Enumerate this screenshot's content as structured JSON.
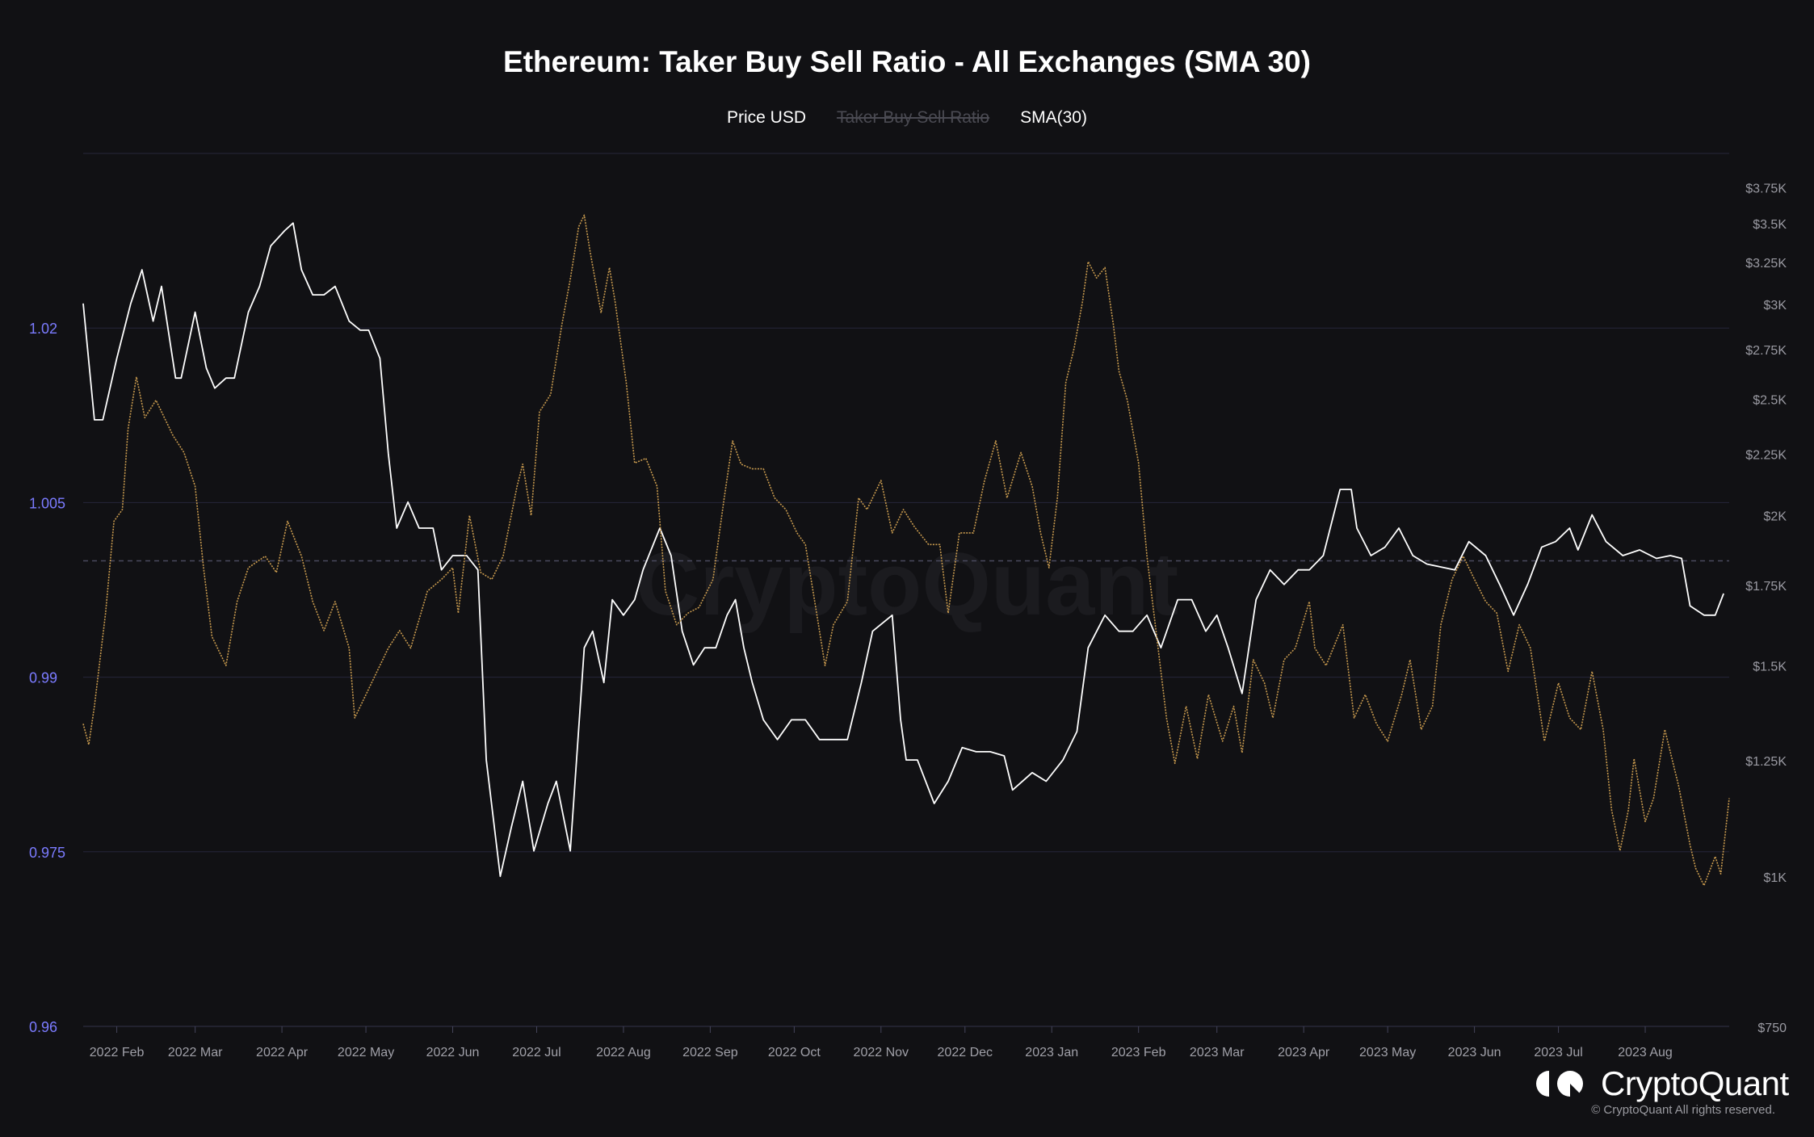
{
  "chart_data": {
    "type": "line",
    "title": "Ethereum: Taker Buy Sell Ratio - All Exchanges (SMA 30)",
    "legend": [
      {
        "label": "Price USD",
        "color": "#ffffff",
        "visible": true
      },
      {
        "label": "Taker Buy Sell Ratio",
        "visible": false
      },
      {
        "label": "SMA(30)",
        "color": "#c89a4e",
        "visible": true
      }
    ],
    "legend_placement": "top-center",
    "xlim": [
      "2022-01-20",
      "2023-08-31"
    ],
    "x_ticks": [
      "2022 Feb",
      "2022 Mar",
      "2022 Apr",
      "2022 May",
      "2022 Jun",
      "2022 Jul",
      "2022 Aug",
      "2022 Sep",
      "2022 Oct",
      "2022 Nov",
      "2022 Dec",
      "2023 Jan",
      "2023 Feb",
      "2023 Mar",
      "2023 Apr",
      "2023 May",
      "2023 Jun",
      "2023 Jul",
      "2023 Aug"
    ],
    "x_tick_dates": [
      "2022-02-01",
      "2022-03-01",
      "2022-04-01",
      "2022-05-01",
      "2022-06-01",
      "2022-07-01",
      "2022-08-01",
      "2022-09-01",
      "2022-10-01",
      "2022-11-01",
      "2022-12-01",
      "2023-01-01",
      "2023-02-01",
      "2023-03-01",
      "2023-04-01",
      "2023-05-01",
      "2023-06-01",
      "2023-07-01",
      "2023-08-01"
    ],
    "left_axis": {
      "range": [
        0.96,
        1.035
      ],
      "ticks": [
        0.96,
        0.975,
        0.99,
        1.005,
        1.02
      ],
      "tick_labels": [
        "0.96",
        "0.975",
        "0.99",
        "1.005",
        "1.02"
      ],
      "reference_line": 1.0,
      "color": "#7b7bff"
    },
    "right_axis": {
      "scale": "log",
      "range": [
        750,
        4000
      ],
      "ticks": [
        750,
        1000,
        1250,
        1500,
        1750,
        2000,
        2250,
        2500,
        2750,
        3000,
        3250,
        3500,
        3750
      ],
      "tick_labels": [
        "$750",
        "$1K",
        "$1.25K",
        "$1.5K",
        "$1.75K",
        "$2K",
        "$2.25K",
        "$2.5K",
        "$2.75K",
        "$3K",
        "$3.25K",
        "$3.5K",
        "$3.75K"
      ]
    },
    "grid": true,
    "series": [
      {
        "name": "Price USD",
        "axis": "right",
        "color": "#ffffff",
        "x": [
          "2022-01-20",
          "2022-01-24",
          "2022-01-27",
          "2022-02-01",
          "2022-02-06",
          "2022-02-10",
          "2022-02-14",
          "2022-02-17",
          "2022-02-22",
          "2022-02-24",
          "2022-03-01",
          "2022-03-05",
          "2022-03-08",
          "2022-03-12",
          "2022-03-15",
          "2022-03-20",
          "2022-03-24",
          "2022-03-28",
          "2022-04-02",
          "2022-04-05",
          "2022-04-08",
          "2022-04-12",
          "2022-04-16",
          "2022-04-20",
          "2022-04-25",
          "2022-04-29",
          "2022-05-02",
          "2022-05-06",
          "2022-05-09",
          "2022-05-12",
          "2022-05-16",
          "2022-05-20",
          "2022-05-25",
          "2022-05-28",
          "2022-06-01",
          "2022-06-06",
          "2022-06-10",
          "2022-06-13",
          "2022-06-18",
          "2022-06-22",
          "2022-06-26",
          "2022-06-30",
          "2022-07-05",
          "2022-07-08",
          "2022-07-13",
          "2022-07-18",
          "2022-07-21",
          "2022-07-25",
          "2022-07-28",
          "2022-08-01",
          "2022-08-05",
          "2022-08-08",
          "2022-08-14",
          "2022-08-18",
          "2022-08-22",
          "2022-08-26",
          "2022-08-30",
          "2022-09-03",
          "2022-09-07",
          "2022-09-10",
          "2022-09-13",
          "2022-09-16",
          "2022-09-20",
          "2022-09-25",
          "2022-09-30",
          "2022-10-05",
          "2022-10-10",
          "2022-10-15",
          "2022-10-20",
          "2022-10-25",
          "2022-10-29",
          "2022-11-05",
          "2022-11-08",
          "2022-11-10",
          "2022-11-14",
          "2022-11-20",
          "2022-11-25",
          "2022-11-30",
          "2022-12-05",
          "2022-12-10",
          "2022-12-15",
          "2022-12-18",
          "2022-12-25",
          "2022-12-30",
          "2023-01-05",
          "2023-01-10",
          "2023-01-14",
          "2023-01-20",
          "2023-01-25",
          "2023-01-30",
          "2023-02-04",
          "2023-02-09",
          "2023-02-15",
          "2023-02-20",
          "2023-02-25",
          "2023-03-01",
          "2023-03-05",
          "2023-03-10",
          "2023-03-15",
          "2023-03-20",
          "2023-03-25",
          "2023-03-30",
          "2023-04-03",
          "2023-04-08",
          "2023-04-14",
          "2023-04-18",
          "2023-04-20",
          "2023-04-25",
          "2023-04-30",
          "2023-05-05",
          "2023-05-10",
          "2023-05-15",
          "2023-05-20",
          "2023-05-25",
          "2023-05-30",
          "2023-06-05",
          "2023-06-10",
          "2023-06-15",
          "2023-06-20",
          "2023-06-25",
          "2023-06-30",
          "2023-07-05",
          "2023-07-08",
          "2023-07-13",
          "2023-07-18",
          "2023-07-24",
          "2023-07-30",
          "2023-08-05",
          "2023-08-10",
          "2023-08-14",
          "2023-08-17",
          "2023-08-22",
          "2023-08-26",
          "2023-08-29"
        ],
        "values": [
          3000,
          2400,
          2400,
          2700,
          3000,
          3200,
          2900,
          3100,
          2600,
          2600,
          2950,
          2650,
          2550,
          2600,
          2600,
          2950,
          3100,
          3350,
          3450,
          3500,
          3200,
          3050,
          3050,
          3100,
          2900,
          2850,
          2850,
          2700,
          2250,
          1950,
          2050,
          1950,
          1950,
          1800,
          1850,
          1850,
          1800,
          1250,
          1000,
          1100,
          1200,
          1050,
          1150,
          1200,
          1050,
          1550,
          1600,
          1450,
          1700,
          1650,
          1700,
          1800,
          1950,
          1850,
          1600,
          1500,
          1550,
          1550,
          1650,
          1700,
          1550,
          1450,
          1350,
          1300,
          1350,
          1350,
          1300,
          1300,
          1300,
          1450,
          1600,
          1650,
          1350,
          1250,
          1250,
          1150,
          1200,
          1280,
          1270,
          1270,
          1260,
          1180,
          1220,
          1200,
          1250,
          1320,
          1550,
          1650,
          1600,
          1600,
          1650,
          1550,
          1700,
          1700,
          1600,
          1650,
          1550,
          1420,
          1700,
          1800,
          1750,
          1800,
          1800,
          1850,
          2100,
          2100,
          1950,
          1850,
          1880,
          1950,
          1850,
          1820,
          1810,
          1800,
          1900,
          1850,
          1750,
          1650,
          1750,
          1880,
          1900,
          1950,
          1870,
          2000,
          1900,
          1850,
          1870,
          1840,
          1850,
          1840,
          1680,
          1650,
          1650,
          1720
        ]
      },
      {
        "name": "SMA(30)",
        "axis": "left",
        "color": "#c89a4e",
        "x": [
          "2022-01-20",
          "2022-01-22",
          "2022-01-24",
          "2022-01-28",
          "2022-01-31",
          "2022-02-03",
          "2022-02-05",
          "2022-02-08",
          "2022-02-11",
          "2022-02-15",
          "2022-02-21",
          "2022-02-25",
          "2022-03-01",
          "2022-03-04",
          "2022-03-07",
          "2022-03-12",
          "2022-03-16",
          "2022-03-20",
          "2022-03-26",
          "2022-03-30",
          "2022-04-03",
          "2022-04-08",
          "2022-04-12",
          "2022-04-16",
          "2022-04-20",
          "2022-04-25",
          "2022-04-27",
          "2022-05-01",
          "2022-05-05",
          "2022-05-09",
          "2022-05-13",
          "2022-05-17",
          "2022-05-23",
          "2022-05-28",
          "2022-06-01",
          "2022-06-03",
          "2022-06-07",
          "2022-06-11",
          "2022-06-15",
          "2022-06-19",
          "2022-06-24",
          "2022-06-26",
          "2022-06-29",
          "2022-07-02",
          "2022-07-06",
          "2022-07-10",
          "2022-07-13",
          "2022-07-16",
          "2022-07-18",
          "2022-07-20",
          "2022-07-24",
          "2022-07-27",
          "2022-07-29",
          "2022-08-02",
          "2022-08-05",
          "2022-08-09",
          "2022-08-13",
          "2022-08-16",
          "2022-08-20",
          "2022-08-24",
          "2022-08-28",
          "2022-09-02",
          "2022-09-06",
          "2022-09-09",
          "2022-09-12",
          "2022-09-16",
          "2022-09-20",
          "2022-09-24",
          "2022-09-28",
          "2022-10-02",
          "2022-10-05",
          "2022-10-09",
          "2022-10-12",
          "2022-10-15",
          "2022-10-20",
          "2022-10-24",
          "2022-10-27",
          "2022-11-01",
          "2022-11-05",
          "2022-11-09",
          "2022-11-13",
          "2022-11-18",
          "2022-11-22",
          "2022-11-25",
          "2022-11-29",
          "2022-12-04",
          "2022-12-08",
          "2022-12-12",
          "2022-12-16",
          "2022-12-21",
          "2022-12-25",
          "2022-12-28",
          "2022-12-31",
          "2023-01-03",
          "2023-01-06",
          "2023-01-09",
          "2023-01-12",
          "2023-01-14",
          "2023-01-17",
          "2023-01-20",
          "2023-01-23",
          "2023-01-25",
          "2023-01-28",
          "2023-02-01",
          "2023-02-04",
          "2023-02-08",
          "2023-02-11",
          "2023-02-14",
          "2023-02-18",
          "2023-02-22",
          "2023-02-26",
          "2023-03-03",
          "2023-03-07",
          "2023-03-10",
          "2023-03-14",
          "2023-03-18",
          "2023-03-21",
          "2023-03-25",
          "2023-03-29",
          "2023-04-03",
          "2023-04-05",
          "2023-04-09",
          "2023-04-15",
          "2023-04-19",
          "2023-04-23",
          "2023-04-27",
          "2023-05-01",
          "2023-05-06",
          "2023-05-09",
          "2023-05-13",
          "2023-05-17",
          "2023-05-20",
          "2023-05-24",
          "2023-05-28",
          "2023-06-01",
          "2023-06-05",
          "2023-06-09",
          "2023-06-13",
          "2023-06-17",
          "2023-06-21",
          "2023-06-26",
          "2023-07-01",
          "2023-07-05",
          "2023-07-09",
          "2023-07-13",
          "2023-07-17",
          "2023-07-20",
          "2023-07-23",
          "2023-07-26",
          "2023-07-28",
          "2023-08-01",
          "2023-08-04",
          "2023-08-08",
          "2023-08-13",
          "2023-08-17",
          "2023-08-19",
          "2023-08-22",
          "2023-08-26",
          "2023-08-28",
          "2023-08-31"
        ],
        "values": [
          0.986,
          0.9842,
          0.9875,
          0.9955,
          1.0034,
          1.0044,
          1.0113,
          1.0158,
          1.0123,
          1.0138,
          1.0108,
          1.0093,
          1.0064,
          0.9994,
          0.9935,
          0.991,
          0.9965,
          0.9994,
          1.0004,
          0.999,
          1.0034,
          1.0004,
          0.9965,
          0.994,
          0.9965,
          0.9925,
          0.9865,
          0.9885,
          0.9905,
          0.9925,
          0.994,
          0.9925,
          0.9974,
          0.9984,
          0.9994,
          0.9955,
          1.0039,
          0.999,
          0.9984,
          1.0004,
          1.0064,
          1.0083,
          1.0039,
          1.0128,
          1.0143,
          1.0203,
          1.0242,
          1.0287,
          1.0297,
          1.0267,
          1.0213,
          1.0252,
          1.0223,
          1.0153,
          1.0084,
          1.0088,
          1.0064,
          0.9974,
          0.9945,
          0.9955,
          0.996,
          0.9984,
          1.0054,
          1.0103,
          1.0083,
          1.0079,
          1.0079,
          1.0054,
          1.0044,
          1.0024,
          1.0014,
          0.9955,
          0.991,
          0.9945,
          0.9965,
          1.0054,
          1.0044,
          1.0069,
          1.0024,
          1.0044,
          1.0029,
          1.0014,
          1.0014,
          0.9955,
          1.0024,
          1.0024,
          1.0069,
          1.0103,
          1.0054,
          1.0093,
          1.0064,
          1.0024,
          0.9994,
          1.0054,
          1.0153,
          1.0183,
          1.0223,
          1.0257,
          1.0243,
          1.0252,
          1.0203,
          1.0163,
          1.0138,
          1.0084,
          1.0004,
          0.9925,
          0.9865,
          0.9826,
          0.9875,
          0.983,
          0.9885,
          0.9845,
          0.9875,
          0.9835,
          0.9915,
          0.9895,
          0.9865,
          0.9915,
          0.9925,
          0.9965,
          0.9925,
          0.991,
          0.9945,
          0.9865,
          0.9885,
          0.986,
          0.9845,
          0.9885,
          0.9915,
          0.9855,
          0.9875,
          0.9945,
          0.9984,
          1.0004,
          0.9984,
          0.9965,
          0.9955,
          0.9905,
          0.9945,
          0.9925,
          0.9845,
          0.9895,
          0.9865,
          0.9855,
          0.9905,
          0.9855,
          0.9786,
          0.9751,
          0.9786,
          0.983,
          0.9776,
          0.9796,
          0.9855,
          0.9806,
          0.9756,
          0.9736,
          0.9721,
          0.9746,
          0.9731,
          0.9796
        ]
      }
    ]
  },
  "watermark": "CryptoQuant",
  "footer": {
    "logo_text": "CryptoQuant",
    "copyright": "© CryptoQuant All rights reserved."
  }
}
